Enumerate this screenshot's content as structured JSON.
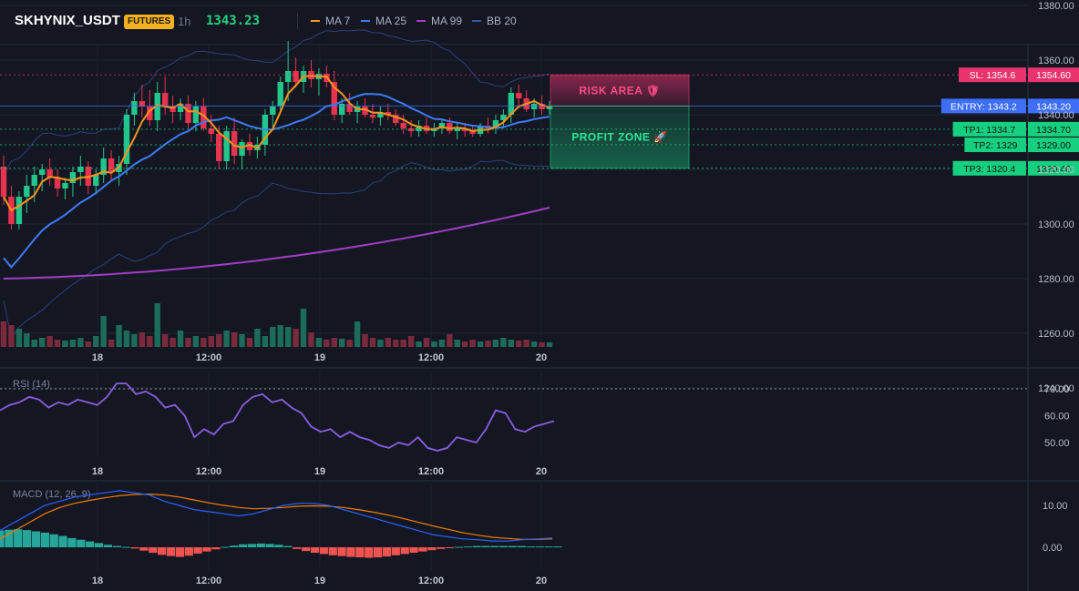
{
  "header": {
    "symbol": "SKHYNIX_USDT",
    "badge": "FUTURES",
    "timeframe": "1h",
    "price": "1343.23",
    "legend": [
      {
        "label": "MA 7",
        "color": "#f7931a"
      },
      {
        "label": "MA 25",
        "color": "#3d7bf5"
      },
      {
        "label": "MA 99",
        "color": "#a03ec6"
      },
      {
        "label": "BB 20",
        "color": "#3555a8"
      }
    ]
  },
  "colors": {
    "up": "#22c58b",
    "down": "#e8334f",
    "background": "#141722",
    "risk": "#e8336e",
    "profit": "#17d07f",
    "entry": "#3d6ef5"
  },
  "main_chart": {
    "price_axis": [
      "1380.00",
      "1360.00",
      "1340.00",
      "1320.00",
      "1300.00",
      "1280.00",
      "1260.00",
      "1240.00"
    ],
    "price_axis_values": [
      1380,
      1360,
      1340,
      1320,
      1300,
      1280,
      1260,
      1240
    ],
    "time_axis": [
      "18",
      "12:00",
      "19",
      "12:00",
      "20"
    ],
    "risk_label": "RISK AREA 🛡",
    "profit_label": "PROFIT ZONE 🚀",
    "levels": [
      {
        "id": "sl",
        "tag": "SL: 1354.6",
        "price_text": "1354.60",
        "value": 1354.6,
        "color": "#e8336e"
      },
      {
        "id": "entry",
        "tag": "ENTRY: 1343.2",
        "price_text": "1343.20",
        "value": 1343.2,
        "color": "#3d6ef5"
      },
      {
        "id": "tp1",
        "tag": "TP1: 1334.7",
        "price_text": "1334.70",
        "value": 1334.7,
        "color": "#17d07f"
      },
      {
        "id": "tp2",
        "tag": "TP2: 1329",
        "price_text": "1329.00",
        "value": 1329.0,
        "color": "#17d07f"
      },
      {
        "id": "tp3",
        "tag": "TP3: 1320.4",
        "price_text": "1320.40",
        "value": 1320.4,
        "color": "#17d07f"
      }
    ],
    "ohlc": [
      [
        1321,
        1325,
        1307,
        1310
      ],
      [
        1310,
        1314,
        1298,
        1300
      ],
      [
        1300,
        1312,
        1298,
        1310
      ],
      [
        1310,
        1318,
        1304,
        1314
      ],
      [
        1314,
        1321,
        1308,
        1318
      ],
      [
        1318,
        1322,
        1312,
        1320
      ],
      [
        1320,
        1324,
        1314,
        1317
      ],
      [
        1317,
        1320,
        1310,
        1313
      ],
      [
        1313,
        1317,
        1309,
        1315
      ],
      [
        1315,
        1321,
        1310,
        1319
      ],
      [
        1319,
        1325,
        1314,
        1321
      ],
      [
        1321,
        1323,
        1311,
        1314
      ],
      [
        1314,
        1320,
        1311,
        1318
      ],
      [
        1318,
        1328,
        1315,
        1324
      ],
      [
        1324,
        1327,
        1316,
        1319
      ],
      [
        1319,
        1325,
        1314,
        1322
      ],
      [
        1322,
        1342,
        1318,
        1340
      ],
      [
        1340,
        1348,
        1336,
        1345
      ],
      [
        1345,
        1351,
        1339,
        1343
      ],
      [
        1343,
        1349,
        1336,
        1338
      ],
      [
        1338,
        1352,
        1334,
        1348
      ],
      [
        1348,
        1354,
        1340,
        1343
      ],
      [
        1343,
        1347,
        1337,
        1341
      ],
      [
        1341,
        1346,
        1338,
        1344
      ],
      [
        1344,
        1347,
        1335,
        1337
      ],
      [
        1337,
        1345,
        1334,
        1343
      ],
      [
        1343,
        1346,
        1334,
        1335
      ],
      [
        1335,
        1340,
        1330,
        1333
      ],
      [
        1333,
        1336,
        1320,
        1323
      ],
      [
        1323,
        1336,
        1320,
        1334
      ],
      [
        1334,
        1339,
        1322,
        1325
      ],
      [
        1325,
        1331,
        1320,
        1330
      ],
      [
        1330,
        1333,
        1325,
        1327
      ],
      [
        1327,
        1332,
        1324,
        1329
      ],
      [
        1329,
        1342,
        1325,
        1340
      ],
      [
        1340,
        1345,
        1335,
        1343
      ],
      [
        1343,
        1354,
        1341,
        1352
      ],
      [
        1352,
        1367,
        1345,
        1356
      ],
      [
        1356,
        1361,
        1350,
        1352
      ],
      [
        1352,
        1358,
        1348,
        1356
      ],
      [
        1356,
        1360,
        1350,
        1353
      ],
      [
        1353,
        1357,
        1347,
        1355
      ],
      [
        1355,
        1358,
        1350,
        1352
      ],
      [
        1352,
        1356,
        1338,
        1340
      ],
      [
        1340,
        1346,
        1337,
        1344
      ],
      [
        1344,
        1348,
        1340,
        1341
      ],
      [
        1341,
        1345,
        1337,
        1343
      ],
      [
        1343,
        1346,
        1339,
        1340
      ],
      [
        1340,
        1344,
        1337,
        1339
      ],
      [
        1339,
        1343,
        1336,
        1341
      ],
      [
        1341,
        1344,
        1338,
        1340
      ],
      [
        1340,
        1342,
        1336,
        1337
      ],
      [
        1337,
        1340,
        1333,
        1335
      ],
      [
        1335,
        1338,
        1332,
        1334
      ],
      [
        1334,
        1338,
        1332,
        1336
      ],
      [
        1336,
        1339,
        1333,
        1334
      ],
      [
        1334,
        1337,
        1332,
        1335
      ],
      [
        1335,
        1338,
        1333,
        1337
      ],
      [
        1337,
        1339,
        1333,
        1334
      ],
      [
        1334,
        1337,
        1331,
        1335
      ],
      [
        1335,
        1337,
        1332,
        1334
      ],
      [
        1334,
        1336,
        1332,
        1333
      ],
      [
        1333,
        1337,
        1332,
        1336
      ],
      [
        1336,
        1339,
        1333,
        1335
      ],
      [
        1335,
        1340,
        1333,
        1338
      ],
      [
        1338,
        1342,
        1335,
        1340
      ],
      [
        1340,
        1350,
        1337,
        1348
      ],
      [
        1348,
        1351,
        1343,
        1346
      ],
      [
        1346,
        1349,
        1341,
        1342
      ],
      [
        1342,
        1346,
        1339,
        1344
      ],
      [
        1344,
        1347,
        1340,
        1342
      ],
      [
        1342,
        1345,
        1340,
        1343
      ]
    ],
    "volume": [
      28,
      24,
      20,
      15,
      8,
      10,
      12,
      8,
      7,
      8,
      10,
      6,
      12,
      34,
      8,
      24,
      18,
      14,
      16,
      12,
      48,
      14,
      10,
      18,
      10,
      12,
      10,
      12,
      14,
      18,
      16,
      14,
      10,
      20,
      12,
      22,
      24,
      22,
      20,
      42,
      16,
      10,
      8,
      10,
      9,
      8,
      28,
      14,
      10,
      8,
      10,
      8,
      8,
      12,
      6,
      10,
      6,
      8,
      14,
      8,
      6,
      8,
      6,
      7,
      8,
      10,
      8,
      7,
      8,
      6,
      5,
      5
    ]
  },
  "rsi": {
    "label": "RSI (14)",
    "axis": [
      "70.00",
      "60.00",
      "50.00"
    ],
    "axis_values": [
      70,
      60,
      50
    ],
    "values": [
      62,
      64,
      65,
      67,
      66,
      63,
      65,
      64,
      66,
      65,
      64,
      67,
      72,
      72,
      68,
      69,
      67,
      63,
      64,
      60,
      52,
      55,
      53,
      57,
      58,
      64,
      67,
      68,
      65,
      66,
      63,
      61,
      56,
      54,
      55,
      52,
      54,
      52,
      51,
      49,
      48,
      50,
      49,
      52,
      48,
      47,
      48,
      52,
      51,
      50,
      55,
      62,
      61,
      55,
      54,
      56,
      57,
      58
    ],
    "overbought": 70
  },
  "macd": {
    "label": "MACD (12, 26, 9)",
    "axis": [
      "10.00",
      "0.00"
    ],
    "axis_values": [
      10,
      0
    ],
    "macd_line": [
      4,
      6,
      8,
      10,
      11,
      12,
      12.5,
      13,
      13.5,
      13,
      12.5,
      11,
      10,
      9,
      8.5,
      8,
      7.5,
      8,
      9,
      10,
      10.5,
      10.5,
      10,
      9,
      8,
      7,
      6,
      5,
      4,
      3,
      2.5,
      2,
      1.8,
      1.5,
      1.5,
      1.8,
      2,
      2.2
    ],
    "signal_line": [
      2,
      4,
      6,
      8,
      9.5,
      10.5,
      11.2,
      11.8,
      12.3,
      12.6,
      12.7,
      12.5,
      12,
      11.3,
      10.6,
      10,
      9.5,
      9.2,
      9.3,
      9.5,
      9.8,
      9.9,
      9.8,
      9.5,
      9,
      8.4,
      7.7,
      6.9,
      6,
      5.1,
      4.3,
      3.5,
      2.9,
      2.4,
      2.1,
      1.9,
      1.9,
      2
    ],
    "histogram": [
      4,
      4.2,
      4.3,
      4.1,
      3.8,
      3.5,
      3.1,
      2.7,
      2.2,
      1.8,
      1.4,
      1.0,
      0.6,
      0.3,
      0.1,
      -0.3,
      -0.8,
      -1.3,
      -1.8,
      -2.1,
      -2.3,
      -2.0,
      -1.5,
      -1.0,
      -0.5,
      0.1,
      0.4,
      0.7,
      0.8,
      0.9,
      0.8,
      0.6,
      0.3,
      -0.4,
      -0.9,
      -1.3,
      -1.6,
      -1.9,
      -2.1,
      -2.3,
      -2.4,
      -2.5,
      -2.4,
      -2.2,
      -1.9,
      -1.6,
      -1.3,
      -1.0,
      -0.7,
      -0.4,
      -0.1,
      0.1,
      0.2,
      0.3,
      0.3,
      0.3,
      0.3,
      0.3,
      0.3,
      0.2,
      0.2,
      0.2,
      0.2
    ]
  }
}
